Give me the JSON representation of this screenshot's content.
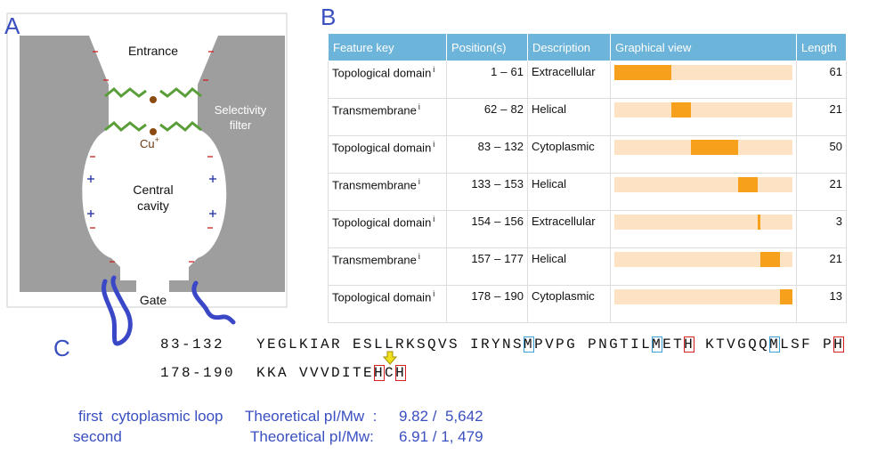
{
  "panel_a": {
    "label": "A",
    "entrance": "Entrance",
    "filter_label": [
      "Selectivity",
      "filter"
    ],
    "ion": "Cu",
    "ion_charge": "+",
    "cavity_label": [
      "Central",
      "cavity"
    ],
    "gate": "Gate"
  },
  "panel_b": {
    "label": "B",
    "headers": [
      "Feature key",
      "Position(s)",
      "Description",
      "Graphical view",
      "Length"
    ],
    "info_mark": "i",
    "position_separator": "–",
    "bar_color": "#f7a01c",
    "track_color": "#fde3c3",
    "rows": [
      {
        "key": "Topological domain",
        "start": 1,
        "end": 61,
        "description": "Extracellular",
        "length": 61
      },
      {
        "key": "Transmembrane",
        "start": 62,
        "end": 82,
        "description": "Helical",
        "length": 21
      },
      {
        "key": "Topological domain",
        "start": 83,
        "end": 132,
        "description": "Cytoplasmic",
        "length": 50
      },
      {
        "key": "Transmembrane",
        "start": 133,
        "end": 153,
        "description": "Helical",
        "length": 21
      },
      {
        "key": "Topological domain",
        "start": 154,
        "end": 156,
        "description": "Extracellular",
        "length": 3
      },
      {
        "key": "Transmembrane",
        "start": 157,
        "end": 177,
        "description": "Helical",
        "length": 21
      },
      {
        "key": "Topological domain",
        "start": 178,
        "end": 190,
        "description": "Cytoplasmic",
        "length": 13
      }
    ]
  },
  "panel_c": {
    "label": "C",
    "box_colors": {
      "blue": "#3aa0d8",
      "red": "#d42020"
    },
    "arrow_color": "#f0e020",
    "lines": [
      {
        "range": "83-132",
        "segments": [
          {
            "text": "YEGLKIAR ESLLRKSQVS IRYNS"
          },
          {
            "text": "M",
            "box": "blue"
          },
          {
            "text": "PVPG PNGTIL"
          },
          {
            "text": "M",
            "box": "blue"
          },
          {
            "text": "ET"
          },
          {
            "text": "H",
            "box": "red"
          },
          {
            "text": " KTVGQQ"
          },
          {
            "text": "M",
            "box": "blue"
          },
          {
            "text": "LSF P"
          },
          {
            "text": "H",
            "box": "red"
          }
        ]
      },
      {
        "range": "178-190",
        "segments": [
          {
            "text": "KKA VVVDITE"
          },
          {
            "text": "H",
            "box": "red"
          },
          {
            "text": "C",
            "marker": "arrow"
          },
          {
            "text": "H",
            "box": "red"
          }
        ]
      }
    ],
    "pi": [
      {
        "name": "first  cytoplasmic loop",
        "measure": "Theoretical pI/Mw  :",
        "value": "9.82 /  5,642"
      },
      {
        "name": "second",
        "measure": "Theoretical pI/Mw:",
        "value": "6.91 / 1, 479"
      }
    ]
  }
}
